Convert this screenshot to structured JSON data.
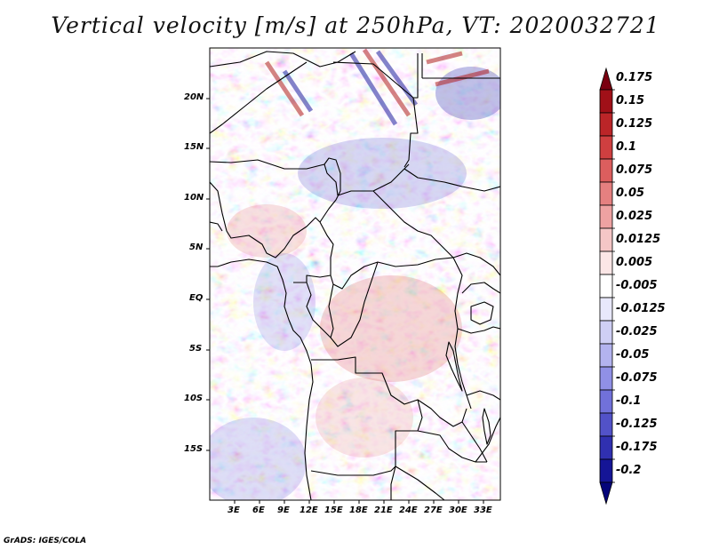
{
  "title": "Vertical velocity [m/s] at 250hPa, VT: 2020032721",
  "credit": "GrADS: IGES/COLA",
  "map": {
    "variable": "Vertical velocity",
    "units": "m/s",
    "level": "250hPa",
    "valid_time": "2020032721",
    "lon_range": [
      0,
      35
    ],
    "lat_range": [
      -20,
      25
    ],
    "x_ticks": [
      "3E",
      "6E",
      "9E",
      "12E",
      "15E",
      "18E",
      "21E",
      "24E",
      "27E",
      "30E",
      "33E"
    ],
    "y_ticks": [
      "20N",
      "15N",
      "10N",
      "5N",
      "EQ",
      "5S",
      "10S",
      "15S"
    ]
  },
  "colorbar": {
    "labels": [
      "0.175",
      "0.15",
      "0.125",
      "0.1",
      "0.075",
      "0.05",
      "0.025",
      "0.0125",
      "0.005",
      "-0.005",
      "-0.0125",
      "-0.025",
      "-0.05",
      "-0.075",
      "-0.1",
      "-0.125",
      "-0.175",
      "-0.2"
    ],
    "colors": [
      "#7a0010",
      "#a01018",
      "#bb2528",
      "#cf3f40",
      "#dc5e5e",
      "#e58080",
      "#eea2a2",
      "#f5c6c6",
      "#fbe6e6",
      "#ffffff",
      "#e8e8fb",
      "#cfcff5",
      "#b3b3ef",
      "#9090e6",
      "#7171da",
      "#5252c8",
      "#3030b0",
      "#151596",
      "#05057a"
    ]
  }
}
